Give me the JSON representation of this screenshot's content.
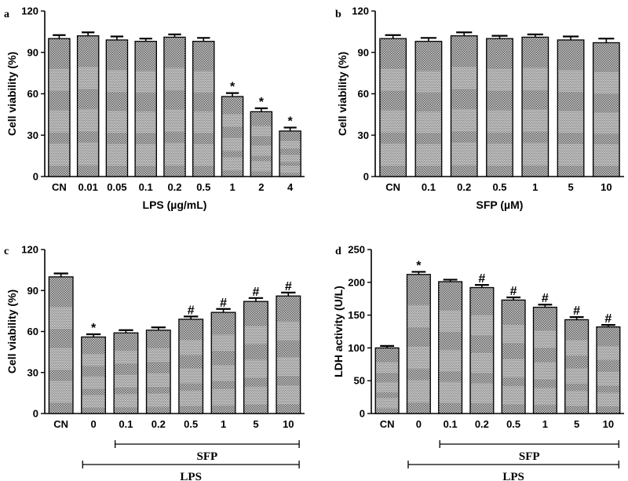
{
  "chart_data": [
    {
      "type": "bar",
      "panel": "a",
      "categories": [
        "CN",
        "0.01",
        "0.05",
        "0.1",
        "0.2",
        "0.5",
        "1",
        "2",
        "4"
      ],
      "values": [
        100,
        102,
        99,
        98,
        101,
        98,
        58,
        47,
        33
      ],
      "errors": [
        2.5,
        2.5,
        2.5,
        2,
        2,
        2.5,
        2.5,
        2.5,
        2.5
      ],
      "marks": [
        "",
        "",
        "",
        "",
        "",
        "",
        "*",
        "*",
        "*"
      ],
      "xlabel": "LPS (µg/mL)",
      "ylabel": "Cell viability (%)",
      "ylim": [
        0,
        120
      ],
      "yticks": [
        "0",
        "30",
        "60",
        "90",
        "120"
      ],
      "groups": []
    },
    {
      "type": "bar",
      "panel": "b",
      "categories": [
        "CN",
        "0.1",
        "0.2",
        "0.5",
        "1",
        "5",
        "10"
      ],
      "values": [
        100,
        98,
        102,
        100,
        101,
        99,
        97
      ],
      "errors": [
        2.5,
        2.5,
        2.5,
        2,
        2,
        2.5,
        3
      ],
      "marks": [
        "",
        "",
        "",
        "",
        "",
        "",
        ""
      ],
      "xlabel": "SFP (µM)",
      "ylabel": "Cell viability (%)",
      "ylim": [
        0,
        120
      ],
      "yticks": [
        "0",
        "30",
        "60",
        "90",
        "120"
      ],
      "groups": []
    },
    {
      "type": "bar",
      "panel": "c",
      "categories": [
        "CN",
        "0",
        "0.1",
        "0.2",
        "0.5",
        "1",
        "5",
        "10"
      ],
      "values": [
        100,
        56,
        59,
        61,
        69,
        74,
        82,
        86
      ],
      "errors": [
        2.5,
        2,
        2,
        2,
        2,
        2.5,
        2.5,
        2.5
      ],
      "marks": [
        "",
        "*",
        "",
        "",
        "#",
        "#",
        "#",
        "#"
      ],
      "xlabel": "",
      "ylabel": "Cell viability (%)",
      "ylim": [
        0,
        120
      ],
      "yticks": [
        "0",
        "30",
        "60",
        "90",
        "120"
      ],
      "groups": [
        {
          "label": "SFP",
          "from": 2,
          "to": 7,
          "level": 1
        },
        {
          "label": "LPS",
          "from": 1,
          "to": 7,
          "level": 2
        }
      ]
    },
    {
      "type": "bar",
      "panel": "d",
      "categories": [
        "CN",
        "0",
        "0.1",
        "0.2",
        "0.5",
        "1",
        "5",
        "10"
      ],
      "values": [
        100,
        212,
        201,
        192,
        173,
        162,
        143,
        132
      ],
      "errors": [
        3,
        4,
        3,
        4,
        4,
        4,
        4,
        3
      ],
      "marks": [
        "",
        "*",
        "",
        "#",
        "#",
        "#",
        "#",
        "#"
      ],
      "xlabel": "",
      "ylabel": "LDH activity (U/L)",
      "ylim": [
        0,
        250
      ],
      "yticks": [
        "0",
        "50",
        "100",
        "150",
        "200",
        "250"
      ],
      "groups": [
        {
          "label": "SFP",
          "from": 2,
          "to": 7,
          "level": 1
        },
        {
          "label": "LPS",
          "from": 1,
          "to": 7,
          "level": 2
        }
      ]
    }
  ]
}
